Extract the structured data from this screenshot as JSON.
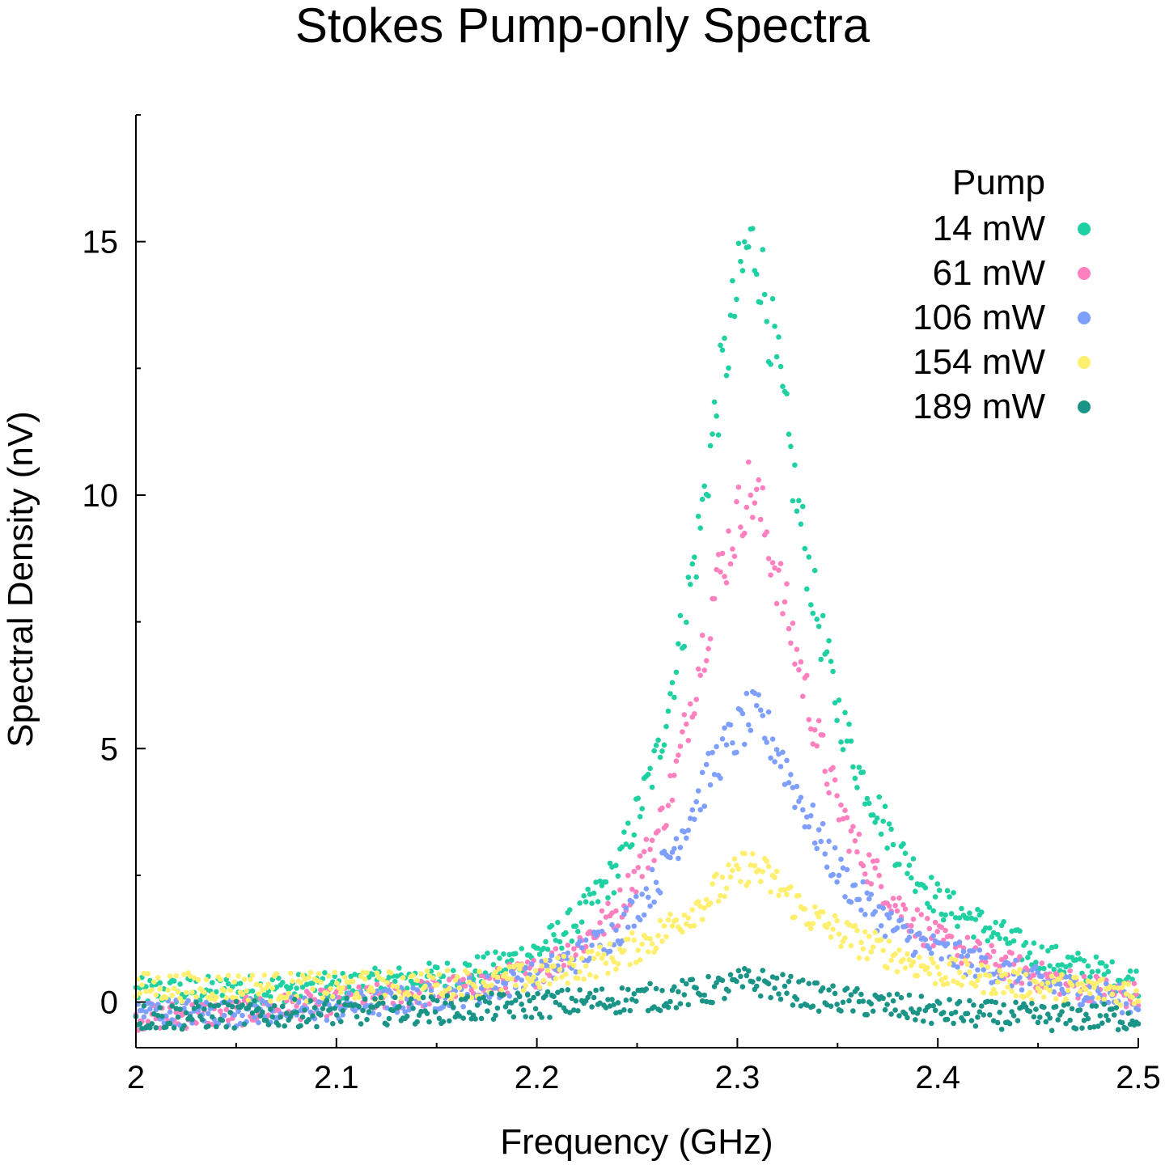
{
  "chart_data": {
    "type": "scatter",
    "title": "Stokes Pump-only Spectra",
    "xlabel": "Frequency (GHz)",
    "ylabel": "Spectral Density (nV)",
    "xlim": [
      2.0,
      2.5
    ],
    "ylim": [
      -0.9,
      17.5
    ],
    "x_ticks": [
      2.0,
      2.1,
      2.2,
      2.3,
      2.4,
      2.5
    ],
    "x_tick_labels": [
      "2",
      "2.1",
      "2.2",
      "2.3",
      "2.4",
      "2.5"
    ],
    "y_ticks": [
      0,
      5,
      10,
      15
    ],
    "y_tick_labels": [
      "0",
      "5",
      "10",
      "15"
    ],
    "y_minor_ticks": [
      2.5,
      7.5,
      12.5,
      17.5
    ],
    "legend_title": "Pump",
    "legend_position": "top-right",
    "grid": false,
    "series": [
      {
        "name": "14 mW",
        "color": "#1fd1a2",
        "x": [
          2.0,
          2.05,
          2.1,
          2.15,
          2.18,
          2.2,
          2.22,
          2.24,
          2.26,
          2.27,
          2.28,
          2.29,
          2.3,
          2.305,
          2.31,
          2.32,
          2.33,
          2.34,
          2.35,
          2.36,
          2.38,
          2.4,
          2.45,
          2.5
        ],
        "y": [
          0.2,
          0.25,
          0.3,
          0.5,
          0.7,
          1.0,
          1.6,
          2.6,
          4.8,
          6.8,
          9.0,
          11.8,
          14.0,
          14.9,
          14.8,
          12.5,
          9.8,
          7.6,
          5.8,
          4.6,
          3.0,
          2.0,
          0.9,
          0.4
        ]
      },
      {
        "name": "61 mW",
        "color": "#ff80bf",
        "x": [
          2.0,
          2.05,
          2.1,
          2.15,
          2.18,
          2.2,
          2.22,
          2.24,
          2.26,
          2.27,
          2.28,
          2.29,
          2.3,
          2.305,
          2.31,
          2.32,
          2.33,
          2.34,
          2.35,
          2.36,
          2.38,
          2.4,
          2.45,
          2.5
        ],
        "y": [
          -0.3,
          -0.2,
          0.0,
          0.2,
          0.4,
          0.6,
          1.1,
          1.8,
          3.3,
          4.6,
          6.5,
          8.3,
          9.5,
          10.1,
          9.9,
          8.4,
          6.8,
          5.2,
          3.9,
          3.0,
          1.9,
          1.2,
          0.5,
          0.1
        ]
      },
      {
        "name": "106 mW",
        "color": "#7f9fff",
        "x": [
          2.0,
          2.05,
          2.1,
          2.15,
          2.18,
          2.2,
          2.22,
          2.24,
          2.26,
          2.27,
          2.28,
          2.29,
          2.3,
          2.305,
          2.31,
          2.32,
          2.33,
          2.34,
          2.35,
          2.36,
          2.38,
          2.4,
          2.45,
          2.5
        ],
        "y": [
          -0.2,
          -0.2,
          -0.1,
          0.1,
          0.3,
          0.5,
          0.9,
          1.4,
          2.4,
          3.2,
          4.0,
          4.8,
          5.3,
          5.6,
          5.6,
          5.0,
          4.1,
          3.3,
          2.6,
          2.1,
          1.4,
          1.0,
          0.4,
          0.0
        ]
      },
      {
        "name": "154 mW",
        "color": "#ffef6e",
        "x": [
          2.0,
          2.05,
          2.1,
          2.15,
          2.18,
          2.2,
          2.22,
          2.24,
          2.26,
          2.27,
          2.28,
          2.29,
          2.3,
          2.305,
          2.31,
          2.32,
          2.33,
          2.34,
          2.35,
          2.36,
          2.38,
          2.4,
          2.45,
          2.5
        ],
        "y": [
          0.3,
          0.3,
          0.3,
          0.35,
          0.4,
          0.5,
          0.7,
          0.9,
          1.3,
          1.6,
          1.9,
          2.2,
          2.5,
          2.7,
          2.6,
          2.3,
          1.9,
          1.6,
          1.4,
          1.2,
          0.9,
          0.6,
          0.3,
          0.2
        ]
      },
      {
        "name": "189 mW",
        "color": "#1a9487",
        "x": [
          2.0,
          2.05,
          2.1,
          2.15,
          2.18,
          2.2,
          2.22,
          2.24,
          2.26,
          2.27,
          2.28,
          2.29,
          2.3,
          2.305,
          2.31,
          2.32,
          2.33,
          2.34,
          2.35,
          2.36,
          2.38,
          2.4,
          2.45,
          2.5
        ],
        "y": [
          -0.3,
          -0.25,
          -0.2,
          -0.15,
          -0.1,
          -0.05,
          0.0,
          0.05,
          0.1,
          0.15,
          0.2,
          0.25,
          0.35,
          0.4,
          0.4,
          0.3,
          0.2,
          0.1,
          0.05,
          0.0,
          -0.1,
          -0.2,
          -0.3,
          -0.3
        ]
      }
    ]
  }
}
